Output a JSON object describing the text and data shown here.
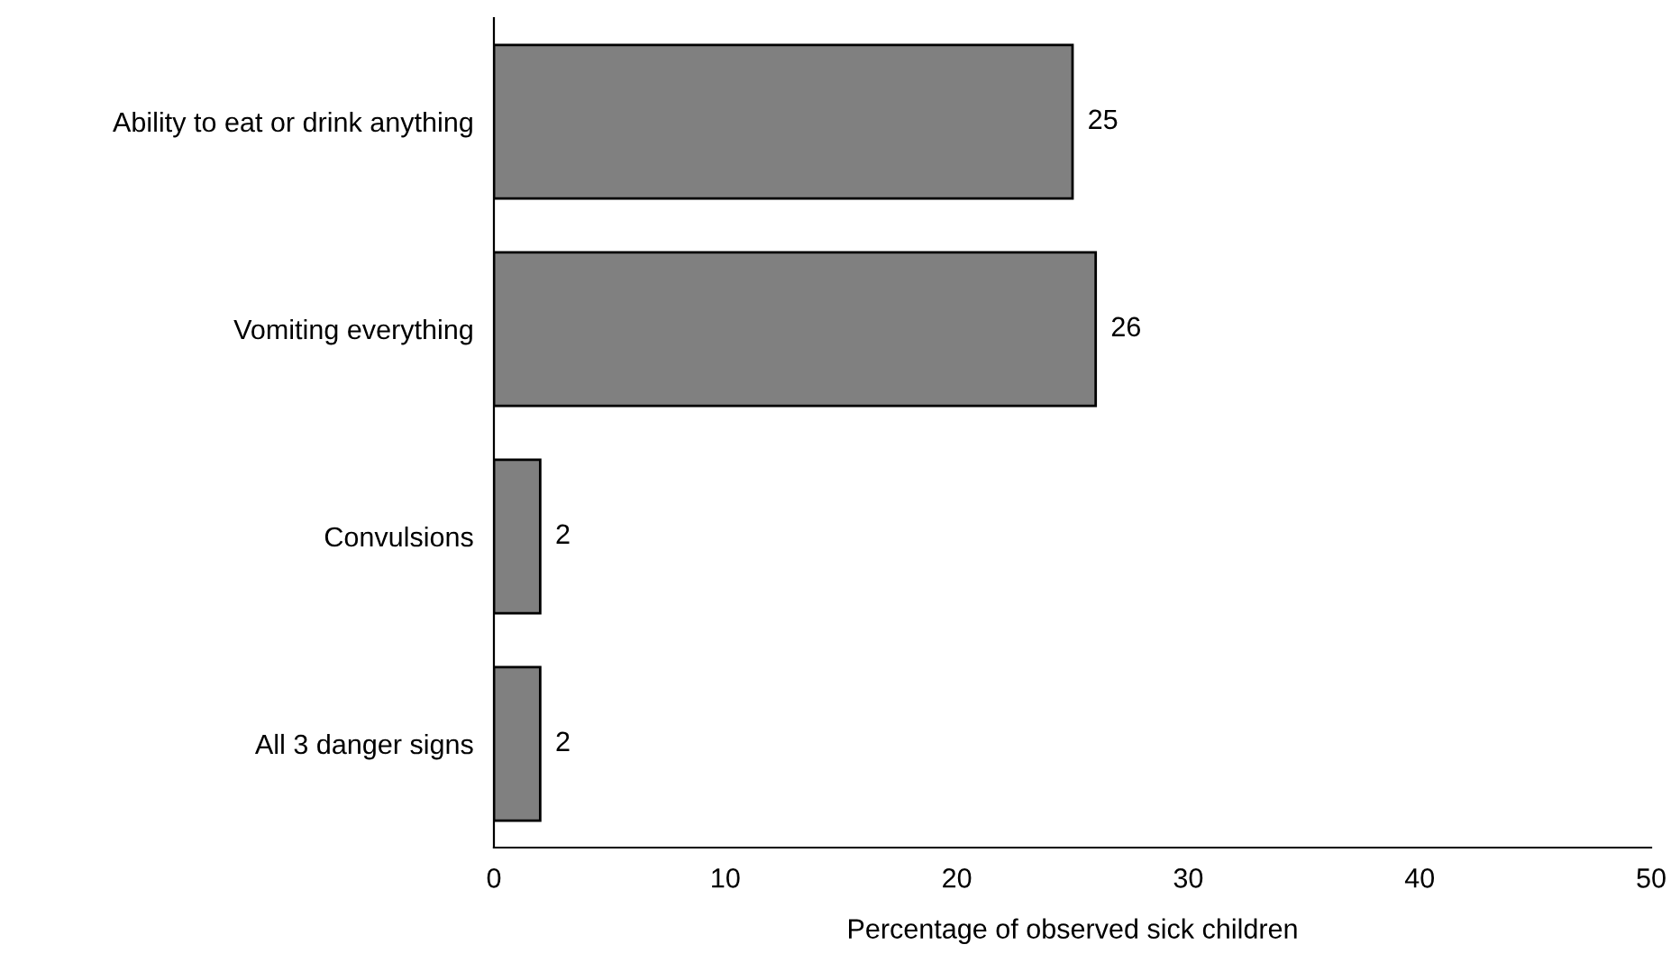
{
  "chart_data": {
    "type": "bar",
    "orientation": "horizontal",
    "xlabel": "Percentage of observed sick children",
    "categories": [
      "Ability to eat or drink anything",
      "Vomiting everything",
      "Convulsions",
      "All 3 danger signs"
    ],
    "values": [
      25,
      26,
      2,
      2
    ],
    "color": "#808080",
    "xlim": [
      0,
      50
    ],
    "xticks": [
      0,
      10,
      20,
      30,
      40,
      50
    ],
    "data_labels": true,
    "grid": false,
    "legend": false
  }
}
